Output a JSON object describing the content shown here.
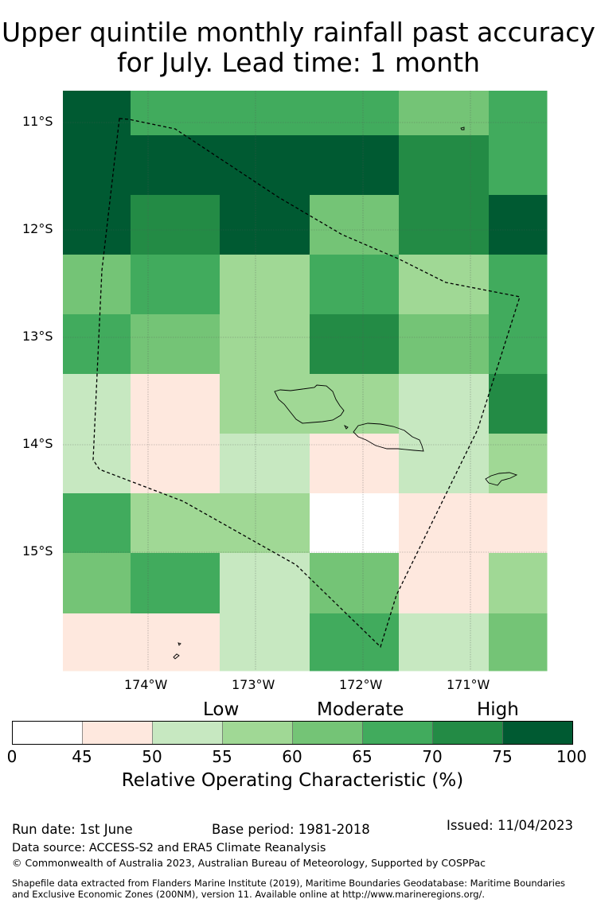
{
  "title_line1": "Upper quintile monthly rainfall past accuracy",
  "title_line2": "for July. Lead time: 1 month",
  "map": {
    "lat_labels": [
      "11°S",
      "12°S",
      "13°S",
      "14°S",
      "15°S"
    ],
    "lon_labels": [
      "174°W",
      "173°W",
      "172°W",
      "171°W"
    ],
    "grid": [
      [
        100,
        70,
        70,
        70,
        65,
        70
      ],
      [
        100,
        100,
        100,
        100,
        75,
        70
      ],
      [
        100,
        75,
        100,
        65,
        75,
        100
      ],
      [
        65,
        70,
        60,
        70,
        60,
        70
      ],
      [
        70,
        65,
        60,
        75,
        65,
        70
      ],
      [
        55,
        50,
        60,
        60,
        55,
        75
      ],
      [
        55,
        50,
        55,
        50,
        55,
        60
      ],
      [
        70,
        60,
        60,
        45,
        50,
        50
      ],
      [
        65,
        70,
        55,
        65,
        50,
        60
      ],
      [
        50,
        50,
        55,
        70,
        55,
        65
      ]
    ]
  },
  "legend": {
    "categories": [
      "Low",
      "Moderate",
      "High"
    ],
    "ticks": [
      "0",
      "45",
      "50",
      "55",
      "60",
      "65",
      "70",
      "75",
      "100"
    ],
    "colors": [
      "#ffffff",
      "#fee8de",
      "#c7e8c1",
      "#a0d895",
      "#74c476",
      "#41ab5d",
      "#238b45",
      "#005a32"
    ],
    "title": "Relative Operating Characteristic (%)"
  },
  "footer": {
    "run_date": "Run date: 1st June",
    "base_period": "Base period: 1981-2018",
    "issued": "Issued: 11/04/2023",
    "data_source": "Data source: ACCESS-S2 and ERA5 Climate Reanalysis",
    "copyright": "© Commonwealth of Australia 2023, Australian Bureau of Meteorology, Supported by COSPPac",
    "shapefile_line1": "Shapefile data extracted from Flanders Marine Institute (2019), Maritime Boundaries Geodatabase: Maritime Boundaries",
    "shapefile_line2": "and Exclusive Economic Zones (200NM), version 11. Available online at http://www.marineregions.org/."
  }
}
